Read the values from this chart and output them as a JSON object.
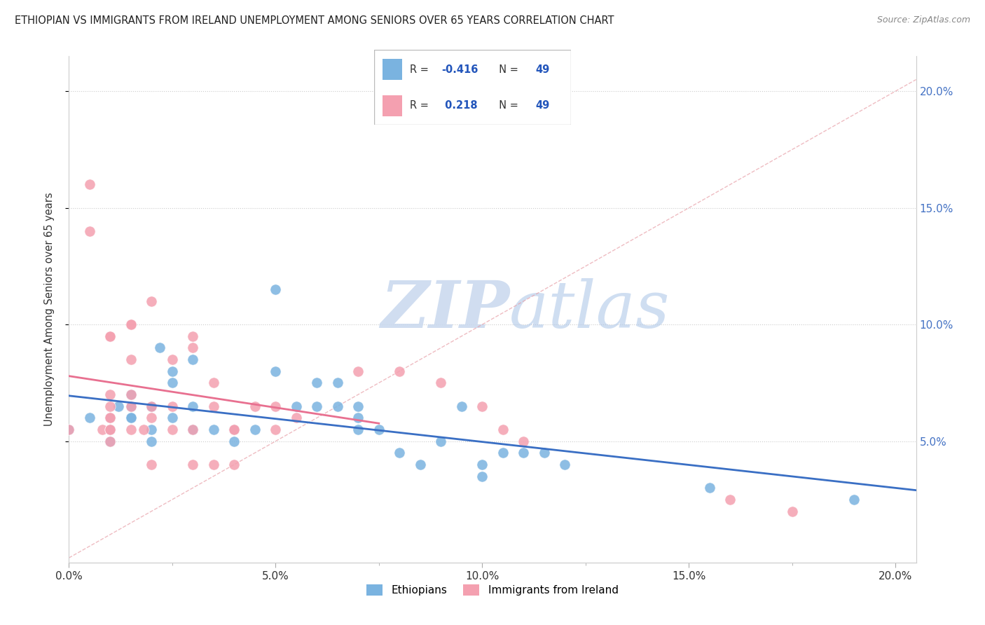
{
  "title": "ETHIOPIAN VS IMMIGRANTS FROM IRELAND UNEMPLOYMENT AMONG SENIORS OVER 65 YEARS CORRELATION CHART",
  "source": "Source: ZipAtlas.com",
  "ylabel": "Unemployment Among Seniors over 65 years",
  "xlim": [
    0.0,
    0.205
  ],
  "ylim": [
    -0.002,
    0.215
  ],
  "xtick_labels": [
    "0.0%",
    "",
    "5.0%",
    "",
    "10.0%",
    "",
    "15.0%",
    "",
    "20.0%"
  ],
  "xtick_vals": [
    0.0,
    0.025,
    0.05,
    0.075,
    0.1,
    0.125,
    0.15,
    0.175,
    0.2
  ],
  "ytick_labels": [
    "5.0%",
    "10.0%",
    "15.0%",
    "20.0%"
  ],
  "ytick_vals": [
    0.05,
    0.1,
    0.15,
    0.2
  ],
  "right_ytick_labels": [
    "5.0%",
    "10.0%",
    "15.0%",
    "20.0%"
  ],
  "right_ytick_vals": [
    0.05,
    0.1,
    0.15,
    0.2
  ],
  "ethiopian_color": "#7ab3e0",
  "ireland_color": "#f4a0b0",
  "ireland_line_color": "#e87090",
  "ethiopian_R": -0.416,
  "ethiopia_N": 49,
  "ireland_R": 0.218,
  "ireland_N": 49,
  "legend_label_1": "Ethiopians",
  "legend_label_2": "Immigrants from Ireland",
  "watermark_zip": "ZIP",
  "watermark_atlas": "atlas",
  "ref_line_color": "#f0a0b0",
  "ethiopian_x": [
    0.0,
    0.005,
    0.01,
    0.01,
    0.01,
    0.01,
    0.012,
    0.015,
    0.015,
    0.015,
    0.015,
    0.02,
    0.02,
    0.02,
    0.02,
    0.022,
    0.025,
    0.025,
    0.025,
    0.03,
    0.03,
    0.03,
    0.035,
    0.04,
    0.04,
    0.045,
    0.05,
    0.05,
    0.055,
    0.06,
    0.06,
    0.065,
    0.065,
    0.07,
    0.07,
    0.07,
    0.075,
    0.08,
    0.085,
    0.09,
    0.095,
    0.1,
    0.1,
    0.105,
    0.11,
    0.115,
    0.12,
    0.155,
    0.19
  ],
  "ethiopian_y": [
    0.055,
    0.06,
    0.055,
    0.06,
    0.055,
    0.05,
    0.065,
    0.06,
    0.06,
    0.07,
    0.065,
    0.065,
    0.055,
    0.05,
    0.065,
    0.09,
    0.075,
    0.06,
    0.08,
    0.065,
    0.055,
    0.085,
    0.055,
    0.05,
    0.055,
    0.055,
    0.115,
    0.08,
    0.065,
    0.075,
    0.065,
    0.075,
    0.065,
    0.065,
    0.06,
    0.055,
    0.055,
    0.045,
    0.04,
    0.05,
    0.065,
    0.04,
    0.035,
    0.045,
    0.045,
    0.045,
    0.04,
    0.03,
    0.025
  ],
  "ireland_x": [
    0.0,
    0.005,
    0.005,
    0.008,
    0.01,
    0.01,
    0.01,
    0.01,
    0.01,
    0.01,
    0.01,
    0.01,
    0.01,
    0.015,
    0.015,
    0.015,
    0.015,
    0.015,
    0.015,
    0.018,
    0.02,
    0.02,
    0.02,
    0.02,
    0.025,
    0.025,
    0.025,
    0.03,
    0.03,
    0.03,
    0.03,
    0.035,
    0.035,
    0.035,
    0.04,
    0.04,
    0.04,
    0.045,
    0.05,
    0.05,
    0.055,
    0.07,
    0.08,
    0.09,
    0.1,
    0.105,
    0.11,
    0.16,
    0.175
  ],
  "ireland_y": [
    0.055,
    0.14,
    0.16,
    0.055,
    0.06,
    0.07,
    0.095,
    0.065,
    0.055,
    0.06,
    0.055,
    0.05,
    0.095,
    0.1,
    0.1,
    0.085,
    0.07,
    0.065,
    0.055,
    0.055,
    0.11,
    0.065,
    0.06,
    0.04,
    0.085,
    0.055,
    0.065,
    0.095,
    0.09,
    0.055,
    0.04,
    0.075,
    0.065,
    0.04,
    0.055,
    0.055,
    0.04,
    0.065,
    0.065,
    0.055,
    0.06,
    0.08,
    0.08,
    0.075,
    0.065,
    0.055,
    0.05,
    0.025,
    0.02
  ]
}
